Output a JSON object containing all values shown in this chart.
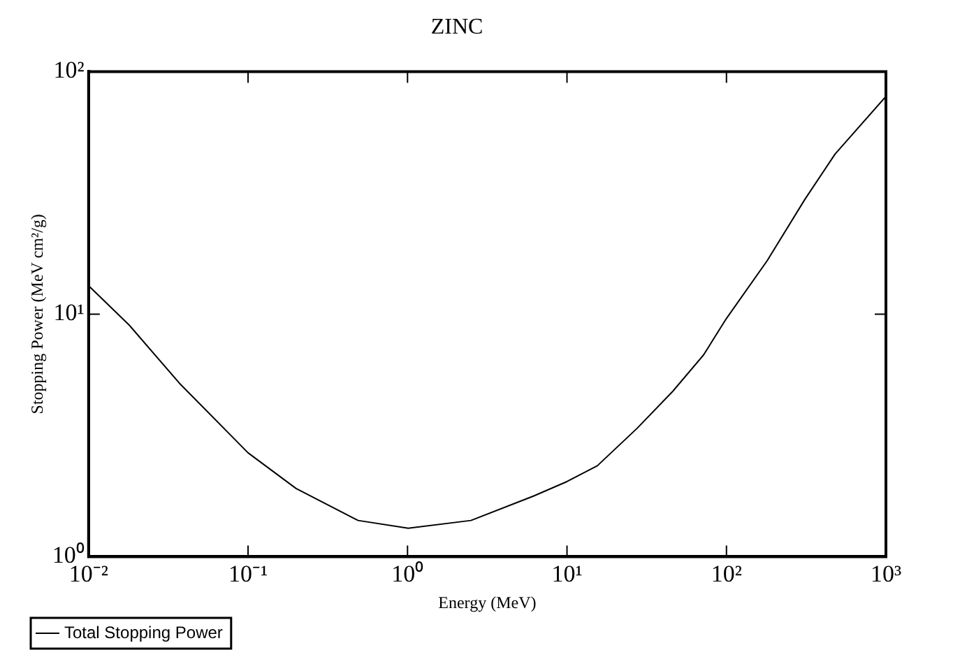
{
  "chart_data": {
    "type": "line",
    "title": "ZINC",
    "xlabel": "Energy (MeV)",
    "ylabel": "Stopping Power (MeV cm²/g)",
    "log": "xy",
    "xlim": [
      0.01,
      1000
    ],
    "ylim": [
      1,
      100
    ],
    "xticks": [
      {
        "value": 0.01,
        "label": "10⁻²"
      },
      {
        "value": 0.1,
        "label": "10⁻¹"
      },
      {
        "value": 1,
        "label": "10⁰"
      },
      {
        "value": 10,
        "label": "10¹"
      },
      {
        "value": 100,
        "label": "10²"
      },
      {
        "value": 1000,
        "label": "10³"
      }
    ],
    "yticks": [
      {
        "value": 1,
        "label": "10⁰"
      },
      {
        "value": 10,
        "label": "10¹"
      },
      {
        "value": 100,
        "label": "10²"
      }
    ],
    "grid": false,
    "legend": "bottom left",
    "marker": "none",
    "line_style": "solid",
    "series": [
      {
        "name": "Total Stopping Power",
        "color": "#000000",
        "x": [
          0.01,
          0.018,
          0.037,
          0.1,
          0.2,
          0.49,
          1.01,
          2.5,
          6.2,
          10,
          15.5,
          27.5,
          46,
          72,
          100,
          180,
          310,
          480,
          1000
        ],
        "values": [
          13.1,
          9.0,
          5.2,
          2.68,
          1.91,
          1.41,
          1.31,
          1.41,
          1.78,
          2.04,
          2.37,
          3.38,
          4.8,
          6.8,
          9.6,
          16.6,
          29.7,
          45.7,
          79
        ]
      }
    ]
  }
}
